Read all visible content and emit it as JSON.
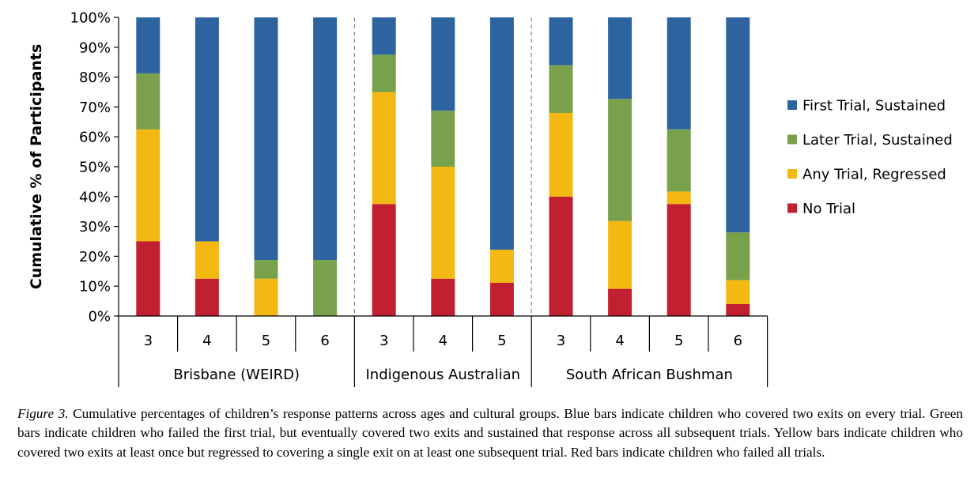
{
  "chart_data": {
    "type": "bar",
    "stacked": true,
    "cumulative_percent": true,
    "ylabel": "Cumulative % of Participants",
    "ylim": [
      0,
      100
    ],
    "yticks": [
      "0%",
      "10%",
      "20%",
      "30%",
      "40%",
      "50%",
      "60%",
      "70%",
      "80%",
      "90%",
      "100%"
    ],
    "legend_position": "right",
    "groups": [
      {
        "name": "Brisbane (WEIRD)",
        "ages": [
          "3",
          "4",
          "5",
          "6"
        ]
      },
      {
        "name": "Indigenous Australian",
        "ages": [
          "3",
          "4",
          "5"
        ]
      },
      {
        "name": "South African Bushman",
        "ages": [
          "3",
          "4",
          "5",
          "6"
        ]
      }
    ],
    "series": [
      {
        "name": "No Trial",
        "color": "#c0202f",
        "values": [
          25,
          12.5,
          0,
          0,
          37.5,
          12.5,
          11.1,
          40,
          9.1,
          37.5,
          4
        ]
      },
      {
        "name": "Any Trial, Regressed",
        "color": "#f3b912",
        "values": [
          37.5,
          12.5,
          12.5,
          0,
          37.5,
          37.5,
          11.1,
          28,
          22.7,
          4.2,
          8
        ]
      },
      {
        "name": "Later Trial, Sustained",
        "color": "#79a14b",
        "values": [
          18.75,
          0,
          6.25,
          18.75,
          12.5,
          18.75,
          0,
          16,
          40.9,
          20.8,
          16
        ]
      },
      {
        "name": "First Trial, Sustained",
        "color": "#2d64a0",
        "values": [
          18.75,
          75,
          81.25,
          81.25,
          12.5,
          31.25,
          77.8,
          16,
          27.3,
          37.5,
          72
        ]
      }
    ]
  },
  "caption": {
    "label": "Figure 3.",
    "text": "Cumulative percentages of children’s response patterns across ages and cultural groups. Blue bars indicate children who covered two exits on every trial. Green bars indicate children who failed the first trial, but eventually covered two exits and sustained that response across all subsequent trials. Yellow bars indicate children who covered two exits at least once but regressed to covering a single exit on at least one subsequent trial. Red bars indicate children who failed all trials."
  }
}
